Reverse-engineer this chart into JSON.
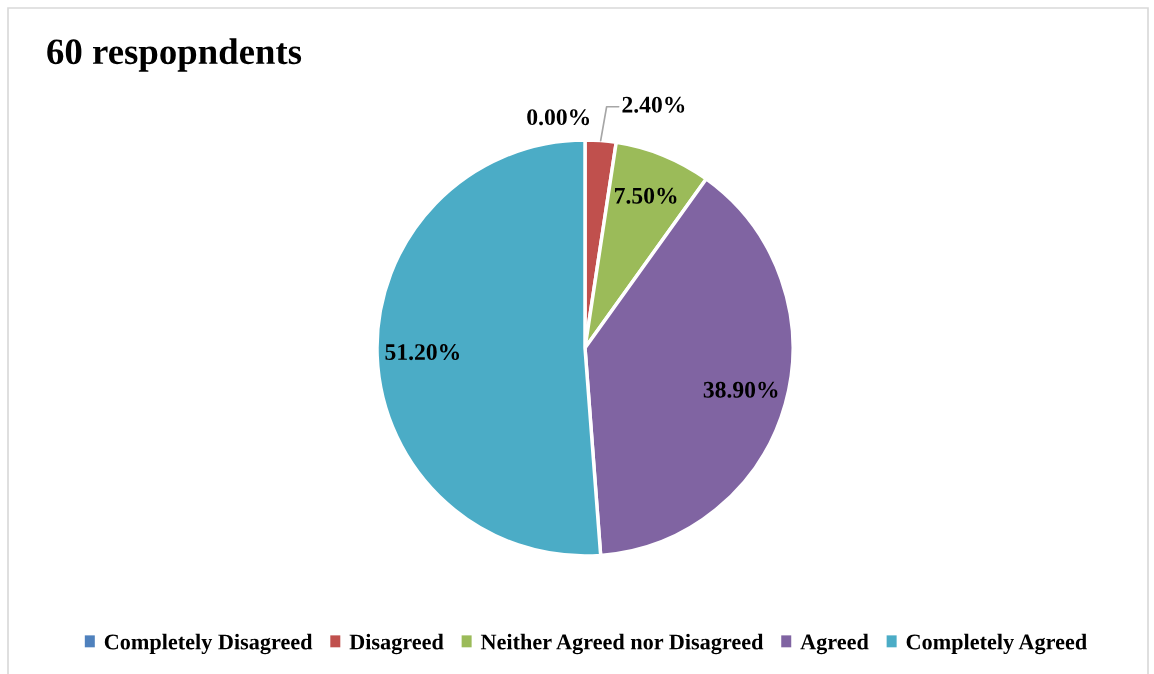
{
  "chart_data": {
    "type": "pie",
    "title": "60 respopndents",
    "categories": [
      "Completely Disagreed",
      "Disagreed",
      "Neither Agreed nor Disagreed",
      "Agreed",
      "Completely Agreed"
    ],
    "values": [
      0,
      2.4,
      7.5,
      38.9,
      51.2
    ],
    "colors": [
      "#4f81bd",
      "#c0504d",
      "#9bbb59",
      "#8064a2",
      "#4bacc6"
    ],
    "value_labels": [
      "0.00%",
      "2.40%",
      "7.50%",
      "38.90%",
      "51.20%"
    ],
    "legend": "bottom"
  }
}
